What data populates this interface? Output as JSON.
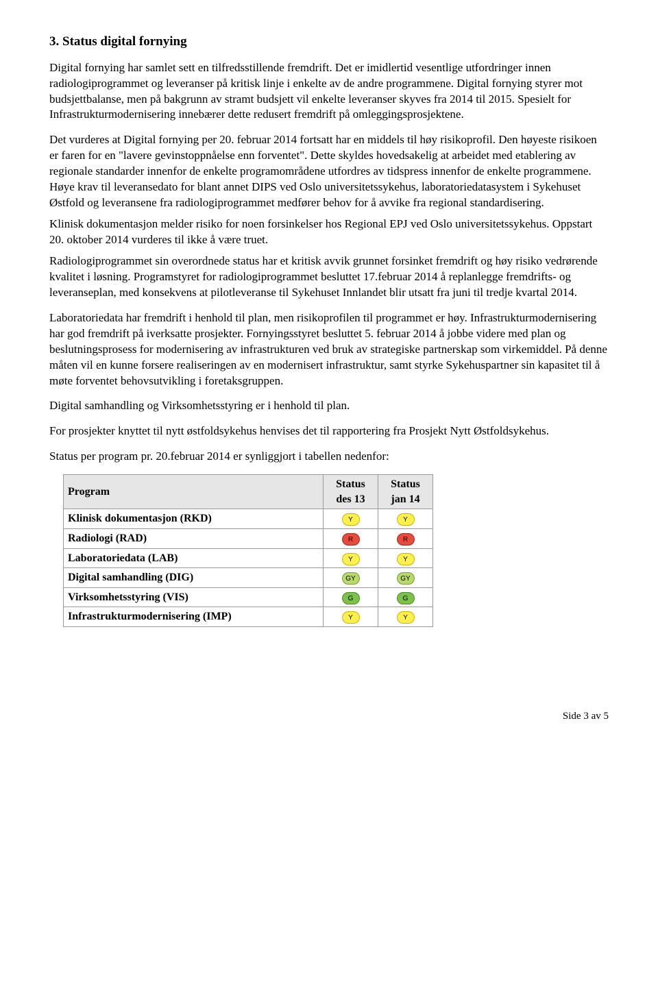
{
  "heading": "3.    Status digital fornying",
  "p1": "Digital fornying har samlet sett en tilfredsstillende fremdrift.",
  "p2": "Det er imidlertid vesentlige utfordringer innen radiologiprogrammet og leveranser på kritisk linje i enkelte av de andre programmene. Digital fornying styrer mot budsjettbalanse, men på bakgrunn av stramt budsjett vil enkelte leveranser skyves fra 2014 til 2015. Spesielt for Infrastrukturmodernisering innebærer dette redusert fremdrift på omleggingsprosjektene.",
  "p3": "Det vurderes at Digital fornying per 20. februar 2014 fortsatt har en middels til høy risikoprofil. Den høyeste risikoen er faren for en \"lavere gevinstoppnåelse enn forventet\". Dette skyldes hovedsakelig at arbeidet med etablering av regionale standarder innenfor de enkelte programområdene utfordres av tidspress innenfor de enkelte programmene. Høye krav til leveransedato for blant annet DIPS ved Oslo universitetssykehus, laboratoriedatasystem i Sykehuset Østfold og leveransene fra radiologiprogrammet medfører behov for å avvike fra regional standardisering.",
  "p4": "Klinisk dokumentasjon melder risiko for noen forsinkelser hos Regional EPJ ved Oslo universitetssykehus. Oppstart 20. oktober 2014 vurderes til ikke å være truet.",
  "p5": "Radiologiprogrammet sin overordnede status har et kritisk avvik grunnet forsinket fremdrift og høy risiko vedrørende kvalitet i løsning. Programstyret for radiologiprogrammet besluttet 17.februar 2014 å replanlegge fremdrifts- og leveranseplan, med konsekvens at pilotleveranse til Sykehuset Innlandet blir utsatt fra juni til tredje kvartal 2014.",
  "p6": "Laboratoriedata har fremdrift i henhold til plan, men risikoprofilen til programmet er høy. Infrastrukturmodernisering har god fremdrift på iverksatte prosjekter. Fornyingsstyret besluttet 5. februar 2014 å jobbe videre med plan og beslutningsprosess for modernisering av infrastrukturen ved bruk av strategiske partnerskap som virkemiddel. På denne måten vil en kunne forsere realiseringen av en modernisert infrastruktur, samt styrke Sykehuspartner sin kapasitet til å møte forventet behovsutvikling i foretaksgruppen.",
  "p7": "Digital samhandling og Virksomhetsstyring er i henhold til plan.",
  "p8": "For prosjekter knyttet til nytt østfoldsykehus henvises det til rapportering fra Prosjekt Nytt Østfoldsykehus.",
  "p9": "Status per program pr. 20.februar 2014 er synliggjort i tabellen nedenfor:",
  "table": {
    "header": {
      "program": "Program",
      "col1_l1": "Status",
      "col1_l2": "des 13",
      "col2_l1": "Status",
      "col2_l2": "jan 14"
    },
    "colors": {
      "Y": {
        "bg": "#fff04d",
        "border": "#c8b400"
      },
      "R": {
        "bg": "#e64b3c",
        "border": "#a02d22"
      },
      "GY": {
        "bg": "#b9d96a",
        "border": "#7d9a3c"
      },
      "G": {
        "bg": "#7cc24a",
        "border": "#4f8a2b"
      }
    },
    "rows": [
      {
        "name": "Klinisk dokumentasjon (RKD)",
        "s1": "Y",
        "s2": "Y"
      },
      {
        "name": "Radiologi (RAD)",
        "s1": "R",
        "s2": "R"
      },
      {
        "name": "Laboratoriedata (LAB)",
        "s1": "Y",
        "s2": "Y"
      },
      {
        "name": "Digital samhandling (DIG)",
        "s1": "GY",
        "s2": "GY"
      },
      {
        "name": "Virksomhetsstyring (VIS)",
        "s1": "G",
        "s2": "G"
      },
      {
        "name": "Infrastrukturmodernisering (IMP)",
        "s1": "Y",
        "s2": "Y"
      }
    ]
  },
  "footer": "Side 3 av 5"
}
